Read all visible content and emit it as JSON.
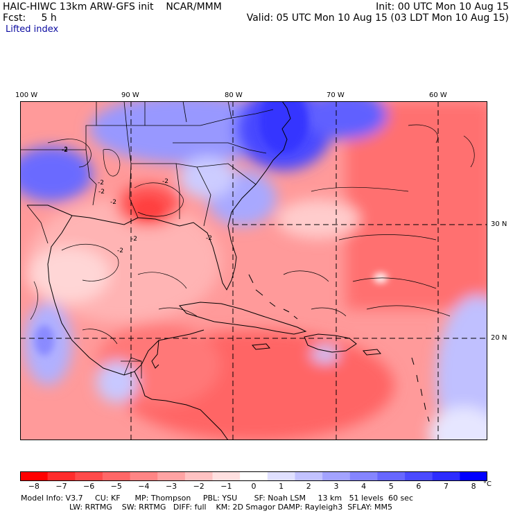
{
  "header": {
    "model_line": "HAIC-HIWC 13km ARW-GFS init",
    "org": "NCAR/MMM",
    "fcst_line": "Fcst:     5 h",
    "init_line": "Init: 00 UTC Mon 10 Aug 15",
    "valid_line": "Valid: 05 UTC Mon 10 Aug 15 (03 LDT Mon 10 Aug 15)",
    "field_name": "Lifted index"
  },
  "axes": {
    "lon_labels": [
      {
        "lon": -100,
        "text": "100 W"
      },
      {
        "lon": -90,
        "text": "90 W"
      },
      {
        "lon": -80,
        "text": "80 W"
      },
      {
        "lon": -70,
        "text": "70 W"
      },
      {
        "lon": -60,
        "text": "60 W"
      }
    ],
    "lat_labels": [
      {
        "lat": 30,
        "text": "30 N"
      },
      {
        "lat": 20,
        "text": "20 N"
      }
    ]
  },
  "map": {
    "contour_label": "-2",
    "colors": {
      "land_outline": "#000000",
      "grid": "#000000",
      "neutral": "#ffffff"
    }
  },
  "colorbar": {
    "colors": [
      "#ff0000",
      "#ff2c2c",
      "#ff4a4a",
      "#ff6767",
      "#ff8585",
      "#ffa3a3",
      "#ffc2c2",
      "#ffe0e0",
      "#ffffff",
      "#e0e0ff",
      "#c2c2ff",
      "#a3a3ff",
      "#8585ff",
      "#6767ff",
      "#4a4aff",
      "#2c2cff",
      "#0000ff"
    ],
    "tick_labels": [
      "−8",
      "−7",
      "−6",
      "−5",
      "−4",
      "−3",
      "−2",
      "−1",
      "0",
      "1",
      "2",
      "3",
      "4",
      "5",
      "6",
      "7",
      "8"
    ],
    "unit": "°C"
  },
  "footer": {
    "line1": "Model Info: V3.7     CU: KF      MP: Thompson     PBL: YSU       SF: Noah LSM     13 km   51 levels  60 sec",
    "line2": "LW: RRTMG    SW: RRTMG   DIFF: full    KM: 2D Smagor DAMP: Rayleigh3  SFLAY: MM5"
  }
}
